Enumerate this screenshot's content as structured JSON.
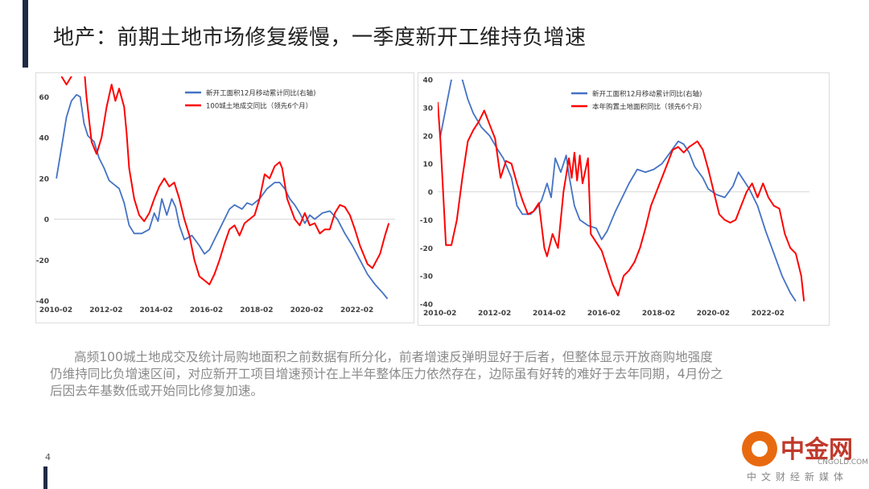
{
  "title": "地产：前期土地市场修复缓慢，一季度新开工维持负增速",
  "paragraph": {
    "line1": "高频100城土地成交及统计局购地面积之前数据有所分化，前者增速反弹明显好于后者，但整体显示开放商购地强度",
    "line2": "仍维持同比负增速区间，对应新开工项目增速预计在上半年整体压力依然存在，边际虽有好转的难好于去年同期，4月份之",
    "line3": "后因去年基数低或开始同比修复加速。"
  },
  "page_number": "4",
  "logo": {
    "cn": "中金网",
    "en": "CNGOLD.COM.CN",
    "tagline": "中文财经新媒体"
  },
  "colors": {
    "blue": "#4472c4",
    "red": "#ff0000",
    "grid": "#d9d9d9",
    "axis_text": "#404040"
  },
  "chart_data": [
    {
      "type": "line",
      "ylim": [
        -40,
        70
      ],
      "yticks": [
        -40,
        -20,
        0,
        20,
        40,
        60
      ],
      "xlim": [
        2010.0,
        2023.6
      ],
      "xticks": [
        {
          "x": 2010.08,
          "label": "2010-02"
        },
        {
          "x": 2012.08,
          "label": "2012-02"
        },
        {
          "x": 2014.08,
          "label": "2014-02"
        },
        {
          "x": 2016.08,
          "label": "2016-02"
        },
        {
          "x": 2018.08,
          "label": "2018-02"
        },
        {
          "x": 2020.08,
          "label": "2020-02"
        },
        {
          "x": 2022.08,
          "label": "2022-02"
        }
      ],
      "series": [
        {
          "name": "新开工面积12月移动累计同比(右轴)",
          "color": "#4472c4",
          "points": [
            [
              2010.1,
              20
            ],
            [
              2010.3,
              35
            ],
            [
              2010.5,
              50
            ],
            [
              2010.7,
              58
            ],
            [
              2010.9,
              61
            ],
            [
              2011.05,
              60
            ],
            [
              2011.2,
              47
            ],
            [
              2011.35,
              41
            ],
            [
              2011.6,
              38
            ],
            [
              2011.8,
              30
            ],
            [
              2012.0,
              25
            ],
            [
              2012.2,
              19
            ],
            [
              2012.4,
              17
            ],
            [
              2012.6,
              15
            ],
            [
              2012.8,
              8
            ],
            [
              2013.0,
              -3
            ],
            [
              2013.2,
              -7
            ],
            [
              2013.5,
              -7
            ],
            [
              2013.8,
              -5
            ],
            [
              2014.0,
              3
            ],
            [
              2014.15,
              -1
            ],
            [
              2014.3,
              10
            ],
            [
              2014.5,
              2
            ],
            [
              2014.7,
              10
            ],
            [
              2014.85,
              6
            ],
            [
              2015.0,
              -3
            ],
            [
              2015.2,
              -10
            ],
            [
              2015.5,
              -8
            ],
            [
              2015.8,
              -13
            ],
            [
              2016.0,
              -17
            ],
            [
              2016.2,
              -15
            ],
            [
              2016.4,
              -10
            ],
            [
              2016.6,
              -5
            ],
            [
              2016.8,
              0
            ],
            [
              2017.0,
              5
            ],
            [
              2017.2,
              7
            ],
            [
              2017.5,
              5
            ],
            [
              2017.7,
              8
            ],
            [
              2017.9,
              7
            ],
            [
              2018.2,
              10
            ],
            [
              2018.5,
              15
            ],
            [
              2018.8,
              18
            ],
            [
              2019.0,
              18
            ],
            [
              2019.2,
              15
            ],
            [
              2019.4,
              10
            ],
            [
              2019.6,
              7
            ],
            [
              2019.8,
              3
            ],
            [
              2020.0,
              -2
            ],
            [
              2020.2,
              2
            ],
            [
              2020.4,
              0
            ],
            [
              2020.7,
              3
            ],
            [
              2021.0,
              4
            ],
            [
              2021.3,
              0
            ],
            [
              2021.6,
              -7
            ],
            [
              2021.9,
              -13
            ],
            [
              2022.2,
              -20
            ],
            [
              2022.5,
              -27
            ],
            [
              2022.8,
              -32
            ],
            [
              2023.1,
              -36
            ],
            [
              2023.3,
              -39
            ]
          ]
        },
        {
          "name": "100城土地成交同比（领先6个月）",
          "color": "#ff0000",
          "points": [
            [
              2010.3,
              70
            ],
            [
              2010.5,
              66
            ],
            [
              2010.7,
              70
            ],
            [
              2010.9,
              78
            ],
            [
              2011.1,
              90
            ],
            [
              2011.3,
              60
            ],
            [
              2011.5,
              38
            ],
            [
              2011.7,
              32
            ],
            [
              2011.9,
              40
            ],
            [
              2012.1,
              55
            ],
            [
              2012.3,
              66
            ],
            [
              2012.45,
              58
            ],
            [
              2012.6,
              64
            ],
            [
              2012.8,
              55
            ],
            [
              2012.9,
              42
            ],
            [
              2013.0,
              25
            ],
            [
              2013.2,
              10
            ],
            [
              2013.4,
              2
            ],
            [
              2013.6,
              -1
            ],
            [
              2013.8,
              3
            ],
            [
              2014.0,
              10
            ],
            [
              2014.2,
              16
            ],
            [
              2014.4,
              20
            ],
            [
              2014.6,
              16
            ],
            [
              2014.8,
              18
            ],
            [
              2015.0,
              10
            ],
            [
              2015.2,
              0
            ],
            [
              2015.4,
              -8
            ],
            [
              2015.6,
              -20
            ],
            [
              2015.8,
              -28
            ],
            [
              2016.0,
              -30
            ],
            [
              2016.2,
              -32
            ],
            [
              2016.4,
              -27
            ],
            [
              2016.6,
              -20
            ],
            [
              2016.8,
              -12
            ],
            [
              2017.0,
              -5
            ],
            [
              2017.2,
              -3
            ],
            [
              2017.4,
              -8
            ],
            [
              2017.6,
              -2
            ],
            [
              2017.8,
              0
            ],
            [
              2018.0,
              2
            ],
            [
              2018.2,
              10
            ],
            [
              2018.4,
              22
            ],
            [
              2018.6,
              20
            ],
            [
              2018.8,
              26
            ],
            [
              2019.0,
              28
            ],
            [
              2019.1,
              25
            ],
            [
              2019.3,
              10
            ],
            [
              2019.6,
              0
            ],
            [
              2019.8,
              -3
            ],
            [
              2020.0,
              3
            ],
            [
              2020.2,
              -3
            ],
            [
              2020.4,
              -2
            ],
            [
              2020.6,
              -7
            ],
            [
              2020.8,
              -5
            ],
            [
              2021.0,
              -5
            ],
            [
              2021.2,
              3
            ],
            [
              2021.4,
              7
            ],
            [
              2021.6,
              6
            ],
            [
              2021.8,
              2
            ],
            [
              2022.0,
              -5
            ],
            [
              2022.2,
              -13
            ],
            [
              2022.5,
              -22
            ],
            [
              2022.7,
              -24
            ],
            [
              2023.0,
              -17
            ],
            [
              2023.2,
              -8
            ],
            [
              2023.35,
              -2
            ]
          ]
        }
      ]
    },
    {
      "type": "line",
      "ylim": [
        -40,
        40
      ],
      "yticks": [
        -40,
        -30,
        -20,
        -10,
        0,
        10,
        20,
        30,
        40
      ],
      "xlim": [
        2010.0,
        2023.6
      ],
      "xticks": [
        {
          "x": 2010.08,
          "label": "2010-02"
        },
        {
          "x": 2012.08,
          "label": "2012-02"
        },
        {
          "x": 2014.08,
          "label": "2014-02"
        },
        {
          "x": 2016.08,
          "label": "2016-02"
        },
        {
          "x": 2018.08,
          "label": "2018-02"
        },
        {
          "x": 2020.08,
          "label": "2020-02"
        },
        {
          "x": 2022.08,
          "label": "2022-02"
        }
      ],
      "series": [
        {
          "name": "新开工面积12月移动累计同比(右轴)",
          "color": "#4472c4",
          "points": [
            [
              2010.1,
              20
            ],
            [
              2010.3,
              30
            ],
            [
              2010.5,
              40
            ],
            [
              2010.7,
              42
            ],
            [
              2010.9,
              40
            ],
            [
              2011.1,
              33
            ],
            [
              2011.3,
              28
            ],
            [
              2011.6,
              23
            ],
            [
              2011.9,
              20
            ],
            [
              2012.2,
              15
            ],
            [
              2012.4,
              12
            ],
            [
              2012.7,
              5
            ],
            [
              2012.9,
              -5
            ],
            [
              2013.1,
              -8
            ],
            [
              2013.4,
              -8
            ],
            [
              2013.6,
              -6
            ],
            [
              2013.8,
              -3
            ],
            [
              2014.0,
              3
            ],
            [
              2014.15,
              -2
            ],
            [
              2014.3,
              12
            ],
            [
              2014.5,
              7
            ],
            [
              2014.7,
              13
            ],
            [
              2014.8,
              6
            ],
            [
              2015.0,
              -5
            ],
            [
              2015.2,
              -10
            ],
            [
              2015.5,
              -12
            ],
            [
              2015.8,
              -13
            ],
            [
              2016.0,
              -17
            ],
            [
              2016.2,
              -14
            ],
            [
              2016.5,
              -7
            ],
            [
              2016.8,
              -1
            ],
            [
              2017.0,
              3
            ],
            [
              2017.3,
              8
            ],
            [
              2017.6,
              7
            ],
            [
              2017.9,
              8
            ],
            [
              2018.2,
              10
            ],
            [
              2018.5,
              14
            ],
            [
              2018.8,
              18
            ],
            [
              2019.0,
              17
            ],
            [
              2019.2,
              14
            ],
            [
              2019.4,
              9
            ],
            [
              2019.7,
              5
            ],
            [
              2019.9,
              1
            ],
            [
              2020.2,
              -1
            ],
            [
              2020.5,
              -2
            ],
            [
              2020.8,
              2
            ],
            [
              2021.0,
              7
            ],
            [
              2021.2,
              4
            ],
            [
              2021.4,
              1
            ],
            [
              2021.7,
              -5
            ],
            [
              2022.0,
              -14
            ],
            [
              2022.3,
              -22
            ],
            [
              2022.6,
              -30
            ],
            [
              2022.9,
              -36
            ],
            [
              2023.1,
              -39
            ]
          ]
        },
        {
          "name": "本年购置土地面积同比（领先6个月）",
          "color": "#ff0000",
          "points": [
            [
              2010.0,
              32
            ],
            [
              2010.1,
              18
            ],
            [
              2010.3,
              -19
            ],
            [
              2010.5,
              -19
            ],
            [
              2010.7,
              -10
            ],
            [
              2010.9,
              5
            ],
            [
              2011.1,
              18
            ],
            [
              2011.3,
              22
            ],
            [
              2011.5,
              25
            ],
            [
              2011.7,
              29
            ],
            [
              2011.9,
              24
            ],
            [
              2012.1,
              19
            ],
            [
              2012.3,
              5
            ],
            [
              2012.5,
              11
            ],
            [
              2012.7,
              10
            ],
            [
              2012.9,
              3
            ],
            [
              2013.1,
              -3
            ],
            [
              2013.3,
              -8
            ],
            [
              2013.5,
              -7
            ],
            [
              2013.7,
              -4
            ],
            [
              2013.9,
              -20
            ],
            [
              2014.0,
              -23
            ],
            [
              2014.2,
              -15
            ],
            [
              2014.4,
              -20
            ],
            [
              2014.5,
              -10
            ],
            [
              2014.6,
              0
            ],
            [
              2014.8,
              12
            ],
            [
              2014.9,
              5
            ],
            [
              2015.0,
              14
            ],
            [
              2015.1,
              4
            ],
            [
              2015.2,
              13
            ],
            [
              2015.3,
              3
            ],
            [
              2015.5,
              12
            ],
            [
              2015.6,
              -15
            ],
            [
              2015.8,
              -18
            ],
            [
              2016.0,
              -21
            ],
            [
              2016.2,
              -27
            ],
            [
              2016.4,
              -33
            ],
            [
              2016.6,
              -37
            ],
            [
              2016.8,
              -30
            ],
            [
              2017.0,
              -28
            ],
            [
              2017.2,
              -25
            ],
            [
              2017.4,
              -20
            ],
            [
              2017.6,
              -13
            ],
            [
              2017.8,
              -5
            ],
            [
              2018.0,
              0
            ],
            [
              2018.2,
              5
            ],
            [
              2018.4,
              10
            ],
            [
              2018.6,
              15
            ],
            [
              2018.8,
              16
            ],
            [
              2019.0,
              14
            ],
            [
              2019.2,
              16
            ],
            [
              2019.5,
              18
            ],
            [
              2019.7,
              15
            ],
            [
              2019.9,
              8
            ],
            [
              2020.1,
              0
            ],
            [
              2020.3,
              -8
            ],
            [
              2020.5,
              -10
            ],
            [
              2020.7,
              -11
            ],
            [
              2020.9,
              -10
            ],
            [
              2021.1,
              -5
            ],
            [
              2021.3,
              0
            ],
            [
              2021.5,
              3
            ],
            [
              2021.7,
              -2
            ],
            [
              2021.9,
              3
            ],
            [
              2022.1,
              -2
            ],
            [
              2022.3,
              -5
            ],
            [
              2022.5,
              -6
            ],
            [
              2022.7,
              -15
            ],
            [
              2022.9,
              -20
            ],
            [
              2023.1,
              -22
            ],
            [
              2023.3,
              -30
            ],
            [
              2023.4,
              -39
            ]
          ]
        }
      ]
    }
  ]
}
